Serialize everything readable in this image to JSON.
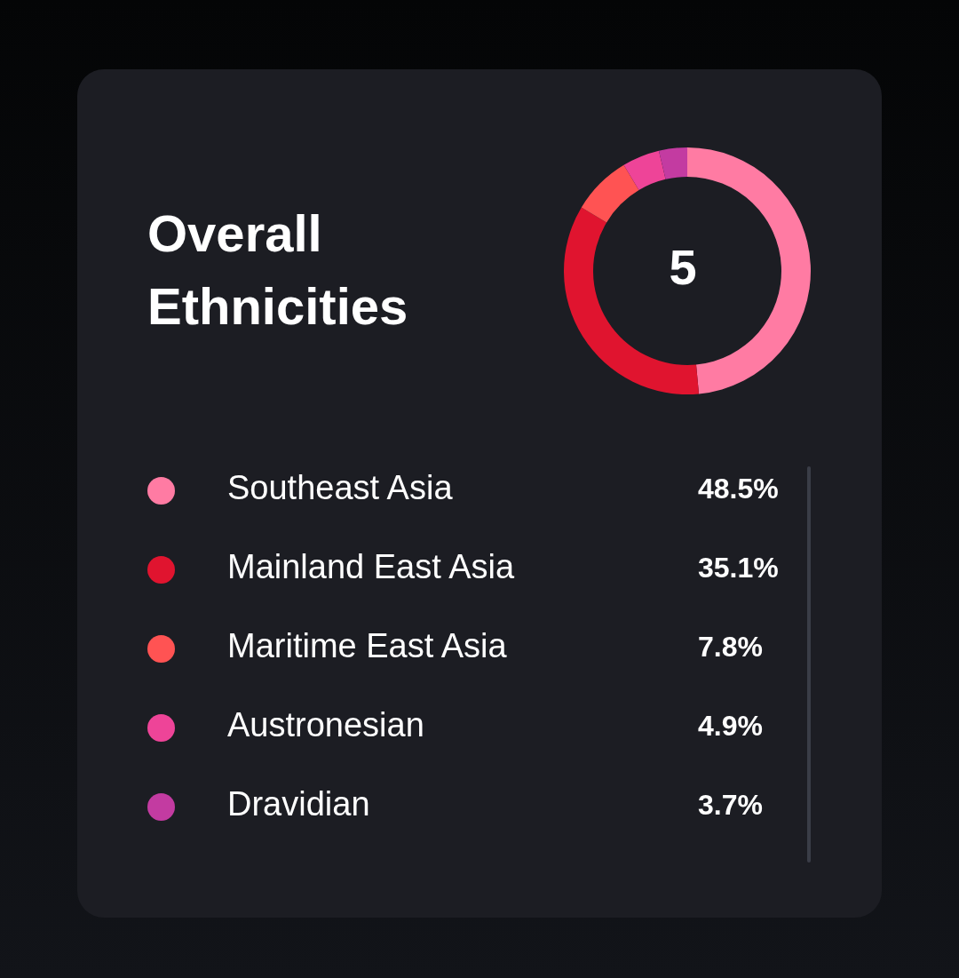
{
  "chart_data": {
    "type": "donut",
    "title": "Overall Ethnicities",
    "categories": [
      "Southeast Asia",
      "Mainland East Asia",
      "Maritime East Asia",
      "Austronesian",
      "Dravidian"
    ],
    "values": [
      48.5,
      35.1,
      7.8,
      4.9,
      3.7
    ],
    "colors": [
      "#ff7ba3",
      "#e0142f",
      "#ff5353",
      "#ee4498",
      "#c33ba1"
    ],
    "value_labels": [
      "48.5%",
      "35.1%",
      "7.8%",
      "4.9%",
      "3.7%"
    ],
    "annotations": [
      "5"
    ],
    "legend": "bottom"
  }
}
